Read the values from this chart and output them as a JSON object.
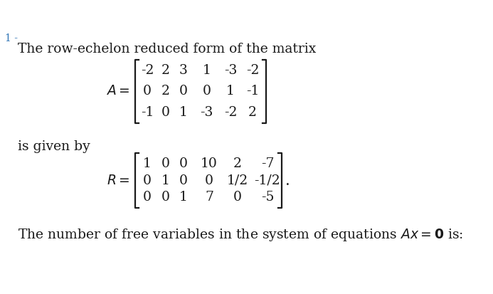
{
  "bg_color": "#ffffff",
  "text_color": "#1a1a1a",
  "label_color": "#2e74b5",
  "title_number": "1 -",
  "intro_text": "The row-echelon reduced form of the matrix",
  "matrix_A": [
    [
      "-2",
      "2",
      "3",
      "1",
      "-3",
      "-2"
    ],
    [
      "0",
      "2",
      "0",
      "0",
      "1",
      "-1"
    ],
    [
      "-1",
      "0",
      "1",
      "-3",
      "-2",
      "2"
    ]
  ],
  "matrix_R": [
    [
      "1",
      "0",
      "0",
      "10",
      "2",
      "-7"
    ],
    [
      "0",
      "1",
      "0",
      "0",
      "1/2",
      "-1/2"
    ],
    [
      "0",
      "0",
      "1",
      "7",
      "0",
      "-5"
    ]
  ],
  "is_given_by": "is given by",
  "bottom_text": "The number of free variables in the system of equations $Ax = \\mathbf{0}$ is:",
  "font_size": 13.5,
  "label_font_size": 10
}
